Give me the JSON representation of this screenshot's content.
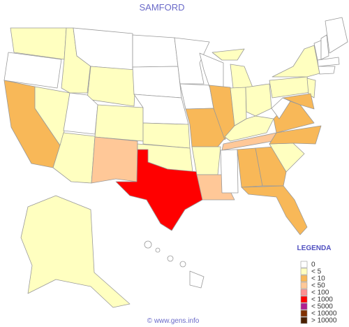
{
  "title": "SAMFORD",
  "legend": {
    "title": "LEGENDA",
    "items": [
      {
        "label": "0",
        "color": "#ffffff"
      },
      {
        "label": "< 5",
        "color": "#ffffc0"
      },
      {
        "label": "< 10",
        "color": "#f8b858"
      },
      {
        "label": "< 50",
        "color": "#ffc898"
      },
      {
        "label": "< 100",
        "color": "#ff9090"
      },
      {
        "label": "< 1000",
        "color": "#ff0000"
      },
      {
        "label": "< 5000",
        "color": "#b02090"
      },
      {
        "label": "< 10000",
        "color": "#803000"
      },
      {
        "label": "> 10000",
        "color": "#4a2000"
      }
    ]
  },
  "footer": "© www.gens.info"
}
